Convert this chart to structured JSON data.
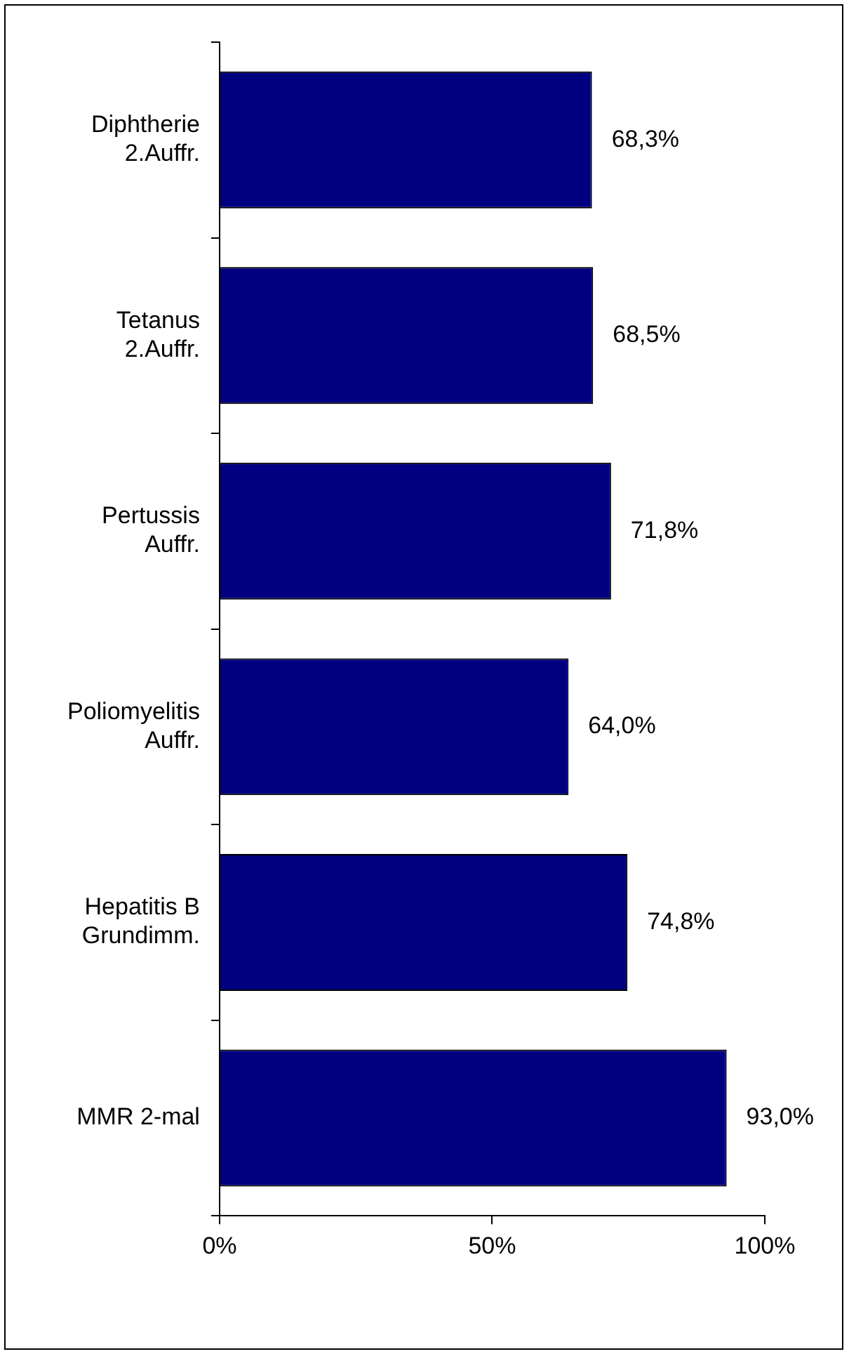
{
  "chart_data": {
    "type": "bar",
    "orientation": "horizontal",
    "categories": [
      "Diphtherie\n2.Auffr.",
      "Tetanus\n2.Auffr.",
      "Pertussis\nAuffr.",
      "Poliomyelitis\nAuffr.",
      "Hepatitis B\nGrundimm.",
      "MMR 2-mal"
    ],
    "values": [
      68.3,
      68.5,
      71.8,
      64.0,
      74.8,
      93.0
    ],
    "value_labels": [
      "68,3%",
      "68,5%",
      "71,8%",
      "64,0%",
      "74,8%",
      "93,0%"
    ],
    "color": "#000080",
    "xlim": [
      0,
      100
    ],
    "xticks": [
      {
        "value": 0,
        "label": "0%"
      },
      {
        "value": 50,
        "label": "50%"
      },
      {
        "value": 100,
        "label": "100%"
      }
    ],
    "grid": false,
    "legend": false
  }
}
